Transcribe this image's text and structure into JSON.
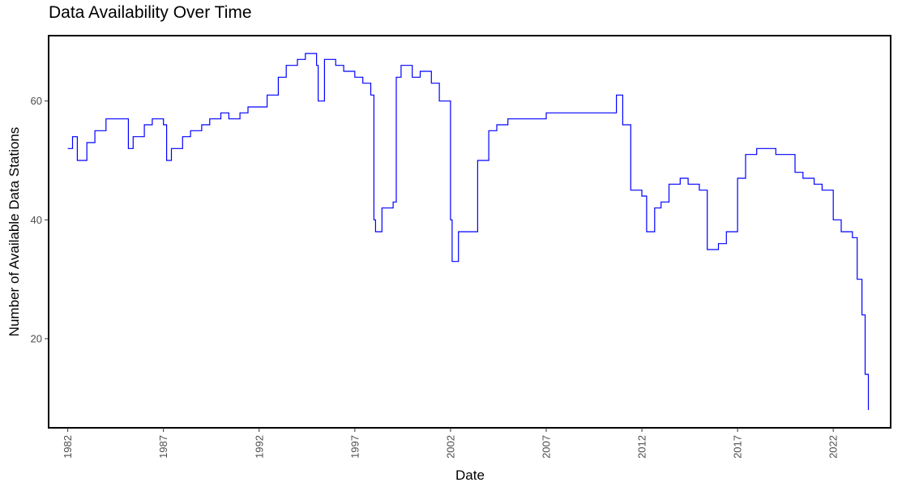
{
  "chart_data": {
    "type": "line",
    "title": "Data Availability Over Time",
    "xlabel": "Date",
    "ylabel": "Number of Available Data Stations",
    "x_ticks": [
      "1982",
      "1987",
      "1992",
      "1997",
      "2002",
      "2007",
      "2012",
      "2017",
      "2022"
    ],
    "y_ticks": [
      20,
      40,
      60
    ],
    "xlim": [
      "1981-01-01",
      "2024-12-31"
    ],
    "ylim": [
      5,
      71
    ],
    "grid": false,
    "line_color": "#0000ff",
    "series": [
      {
        "x": [
          "1982-01",
          "1982-04",
          "1982-07",
          "1983-01",
          "1983-06",
          "1984-01",
          "1984-06",
          "1985-01",
          "1985-03",
          "1985-06",
          "1986-01",
          "1986-06",
          "1987-01",
          "1987-03",
          "1987-06",
          "1988-01",
          "1988-06",
          "1989-01",
          "1989-06",
          "1990-01",
          "1990-06",
          "1991-01",
          "1991-06",
          "1992-01",
          "1992-06",
          "1993-01",
          "1993-06",
          "1994-01",
          "1994-06",
          "1995-01",
          "1995-02",
          "1995-06",
          "1996-01",
          "1996-06",
          "1997-01",
          "1997-06",
          "1997-11",
          "1998-01",
          "1998-02",
          "1998-06",
          "1999-01",
          "1999-03",
          "1999-06",
          "2000-01",
          "2000-06",
          "2001-01",
          "2001-06",
          "2002-01",
          "2002-02",
          "2002-06",
          "2003-01",
          "2003-06",
          "2004-01",
          "2004-06",
          "2005-01",
          "2006-01",
          "2007-01",
          "2008-01",
          "2009-01",
          "2010-01",
          "2010-09",
          "2011-01",
          "2011-06",
          "2012-01",
          "2012-04",
          "2012-09",
          "2013-01",
          "2013-06",
          "2014-01",
          "2014-06",
          "2015-01",
          "2015-06",
          "2016-01",
          "2016-06",
          "2017-01",
          "2017-06",
          "2018-01",
          "2018-06",
          "2019-01",
          "2019-06",
          "2020-01",
          "2020-06",
          "2021-01",
          "2021-06",
          "2022-01",
          "2022-06",
          "2023-01",
          "2023-04",
          "2023-07",
          "2023-09",
          "2023-11"
        ],
        "y": [
          52,
          54,
          50,
          53,
          55,
          57,
          57,
          57,
          52,
          54,
          56,
          57,
          56,
          50,
          52,
          54,
          55,
          56,
          57,
          58,
          57,
          58,
          59,
          59,
          61,
          64,
          66,
          67,
          68,
          66,
          60,
          67,
          66,
          65,
          64,
          63,
          61,
          40,
          38,
          42,
          43,
          64,
          66,
          64,
          65,
          63,
          60,
          40,
          33,
          38,
          38,
          50,
          55,
          56,
          57,
          57,
          58,
          58,
          58,
          58,
          61,
          56,
          45,
          44,
          38,
          42,
          43,
          46,
          47,
          46,
          45,
          35,
          36,
          38,
          47,
          51,
          52,
          52,
          51,
          51,
          48,
          47,
          46,
          45,
          40,
          38,
          37,
          30,
          24,
          14,
          8
        ]
      }
    ]
  }
}
